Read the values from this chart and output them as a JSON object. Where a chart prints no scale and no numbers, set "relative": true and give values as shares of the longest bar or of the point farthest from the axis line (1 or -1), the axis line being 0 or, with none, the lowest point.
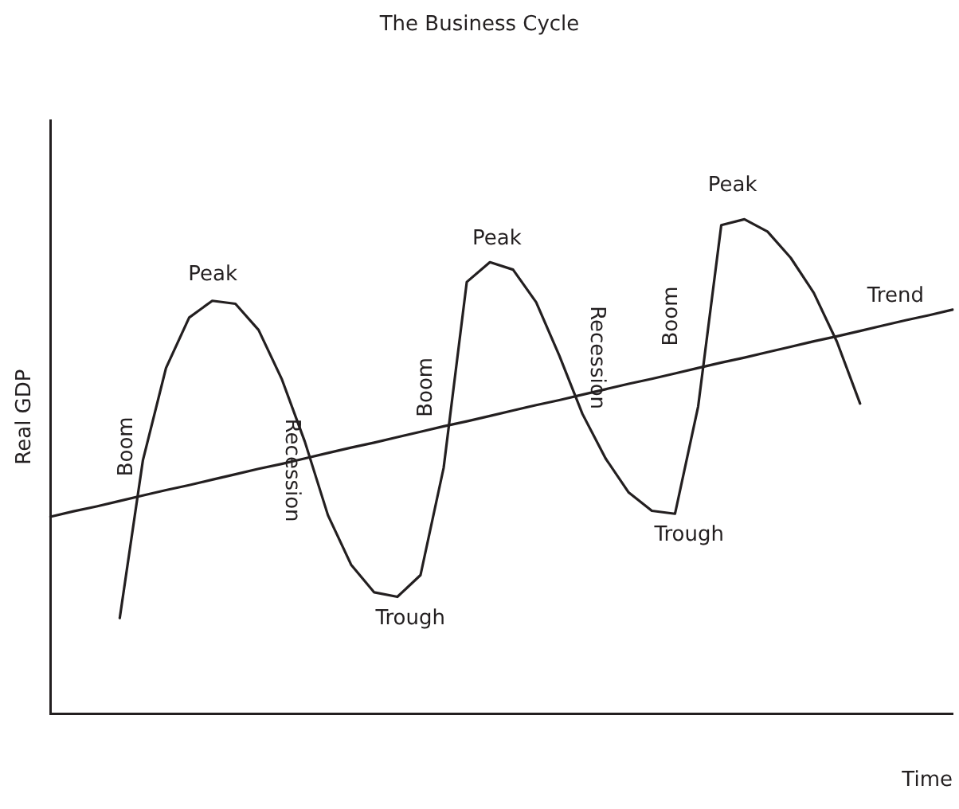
{
  "chart_data": {
    "type": "line",
    "title": "The Business Cycle",
    "xlabel": "Time",
    "ylabel": "Real GDP",
    "relative": true,
    "legend": false,
    "grid": false,
    "marker": "none",
    "line_style": "solid",
    "categories": [
      null,
      null,
      null,
      null,
      null,
      null,
      null,
      null,
      null,
      null,
      null,
      null,
      null,
      null,
      null,
      null,
      null,
      null,
      null,
      null,
      null,
      null,
      null,
      null,
      null,
      null,
      null,
      null,
      null,
      null,
      null,
      null,
      null,
      null,
      null,
      null,
      null,
      null,
      null,
      null
    ],
    "series": [
      {
        "color": "#231f20",
        "values": [
          null,
          null,
          null,
          0.193,
          0.512,
          0.699,
          0.801,
          0.835,
          0.829,
          0.776,
          0.677,
          0.55,
          0.401,
          0.301,
          0.245,
          0.236,
          0.28,
          0.497,
          0.873,
          0.913,
          0.898,
          0.832,
          0.724,
          0.606,
          0.516,
          0.447,
          0.41,
          0.404,
          0.621,
          0.988,
          1,
          0.975,
          0.922,
          0.851,
          0.752,
          0.627,
          null,
          null,
          null,
          null
        ]
      },
      {
        "name": "Trend",
        "color": "#231f20",
        "values": [
          0.398,
          0.409,
          0.419,
          0.43,
          0.441,
          0.452,
          0.462,
          0.473,
          0.484,
          0.495,
          0.505,
          0.516,
          0.527,
          0.538,
          0.548,
          0.559,
          0.57,
          0.581,
          0.591,
          0.602,
          0.613,
          0.624,
          0.634,
          0.645,
          0.656,
          0.667,
          0.677,
          0.688,
          0.699,
          0.71,
          0.72,
          0.731,
          0.742,
          0.753,
          0.763,
          0.774,
          0.785,
          0.796,
          0.806,
          0.817
        ]
      }
    ],
    "annotations": [
      "Peak",
      "Peak",
      "Peak",
      "Trough",
      "Trough",
      "Boom",
      "Boom",
      "Boom",
      "Recession",
      "Recession"
    ]
  }
}
